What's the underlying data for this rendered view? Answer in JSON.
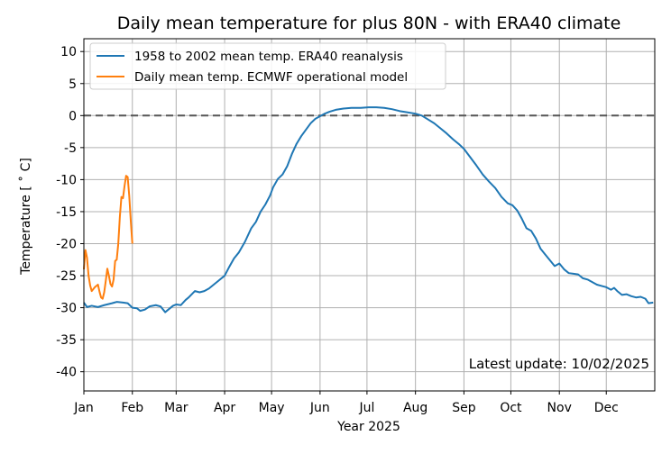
{
  "chart_data": {
    "type": "line",
    "title": "Daily mean temperature for plus 80N - with ERA40 climate",
    "xlabel": "Year 2025",
    "ylabel": "Temperature [$^\\circ$C]",
    "ylabel_display": "Temperature [ ˚ C]",
    "xlim_day_of_year": [
      1,
      366
    ],
    "ylim": [
      -43,
      12
    ],
    "x_ticks": [
      {
        "label": "Jan",
        "day": 1
      },
      {
        "label": "Feb",
        "day": 32
      },
      {
        "label": "Mar",
        "day": 60
      },
      {
        "label": "Apr",
        "day": 91
      },
      {
        "label": "May",
        "day": 121
      },
      {
        "label": "Jun",
        "day": 152
      },
      {
        "label": "Jul",
        "day": 182
      },
      {
        "label": "Aug",
        "day": 213
      },
      {
        "label": "Sep",
        "day": 244
      },
      {
        "label": "Oct",
        "day": 274
      },
      {
        "label": "Nov",
        "day": 305
      },
      {
        "label": "Dec",
        "day": 335
      }
    ],
    "y_ticks": [
      10,
      5,
      0,
      -5,
      -10,
      -15,
      -20,
      -25,
      -30,
      -35,
      -40
    ],
    "grid": true,
    "reference_line": {
      "y": 0,
      "style": "dashed",
      "color": "#555555"
    },
    "legend_position": "top-left",
    "annotation": "Latest update: 10/02/2025",
    "series": [
      {
        "name": "1958 to 2002 mean temp. ERA40 reanalysis",
        "color": "#1f77b4",
        "points": [
          [
            1,
            -29.2
          ],
          [
            3,
            -29.9
          ],
          [
            6,
            -29.7
          ],
          [
            10,
            -29.9
          ],
          [
            14,
            -29.6
          ],
          [
            19,
            -29.3
          ],
          [
            22,
            -29.1
          ],
          [
            26,
            -29.2
          ],
          [
            29,
            -29.3
          ],
          [
            32,
            -30.0
          ],
          [
            35,
            -30.1
          ],
          [
            37,
            -30.5
          ],
          [
            40,
            -30.3
          ],
          [
            43,
            -29.8
          ],
          [
            47,
            -29.6
          ],
          [
            50,
            -29.8
          ],
          [
            53,
            -30.7
          ],
          [
            55,
            -30.3
          ],
          [
            58,
            -29.7
          ],
          [
            60,
            -29.5
          ],
          [
            63,
            -29.6
          ],
          [
            66,
            -28.8
          ],
          [
            68,
            -28.4
          ],
          [
            72,
            -27.4
          ],
          [
            75,
            -27.6
          ],
          [
            78,
            -27.4
          ],
          [
            81,
            -27.0
          ],
          [
            84,
            -26.4
          ],
          [
            87,
            -25.8
          ],
          [
            91,
            -25.0
          ],
          [
            94,
            -23.6
          ],
          [
            97,
            -22.3
          ],
          [
            100,
            -21.4
          ],
          [
            104,
            -19.7
          ],
          [
            108,
            -17.6
          ],
          [
            111,
            -16.6
          ],
          [
            114,
            -15.0
          ],
          [
            117,
            -13.9
          ],
          [
            120,
            -12.5
          ],
          [
            122,
            -11.2
          ],
          [
            125,
            -9.9
          ],
          [
            128,
            -9.2
          ],
          [
            131,
            -7.9
          ],
          [
            134,
            -6.0
          ],
          [
            137,
            -4.4
          ],
          [
            140,
            -3.2
          ],
          [
            143,
            -2.2
          ],
          [
            146,
            -1.2
          ],
          [
            149,
            -0.5
          ],
          [
            152,
            -0.1
          ],
          [
            155,
            0.3
          ],
          [
            158,
            0.6
          ],
          [
            162,
            0.9
          ],
          [
            167,
            1.1
          ],
          [
            172,
            1.2
          ],
          [
            178,
            1.2
          ],
          [
            183,
            1.3
          ],
          [
            188,
            1.3
          ],
          [
            193,
            1.2
          ],
          [
            198,
            1.0
          ],
          [
            203,
            0.7
          ],
          [
            208,
            0.5
          ],
          [
            213,
            0.3
          ],
          [
            217,
            0.0
          ],
          [
            221,
            -0.6
          ],
          [
            225,
            -1.2
          ],
          [
            229,
            -2.0
          ],
          [
            233,
            -2.8
          ],
          [
            237,
            -3.7
          ],
          [
            241,
            -4.5
          ],
          [
            244,
            -5.2
          ],
          [
            248,
            -6.5
          ],
          [
            252,
            -7.8
          ],
          [
            256,
            -9.2
          ],
          [
            260,
            -10.3
          ],
          [
            264,
            -11.3
          ],
          [
            268,
            -12.7
          ],
          [
            272,
            -13.7
          ],
          [
            275,
            -14.0
          ],
          [
            278,
            -14.8
          ],
          [
            281,
            -16.1
          ],
          [
            284,
            -17.6
          ],
          [
            287,
            -18.0
          ],
          [
            290,
            -19.2
          ],
          [
            293,
            -20.8
          ],
          [
            296,
            -21.7
          ],
          [
            299,
            -22.6
          ],
          [
            302,
            -23.5
          ],
          [
            305,
            -23.1
          ],
          [
            308,
            -24.0
          ],
          [
            311,
            -24.6
          ],
          [
            314,
            -24.7
          ],
          [
            317,
            -24.8
          ],
          [
            320,
            -25.4
          ],
          [
            323,
            -25.6
          ],
          [
            326,
            -26.0
          ],
          [
            329,
            -26.4
          ],
          [
            332,
            -26.6
          ],
          [
            335,
            -26.8
          ],
          [
            338,
            -27.2
          ],
          [
            340,
            -26.9
          ],
          [
            342,
            -27.4
          ],
          [
            345,
            -28.0
          ],
          [
            348,
            -27.9
          ],
          [
            351,
            -28.2
          ],
          [
            354,
            -28.4
          ],
          [
            357,
            -28.3
          ],
          [
            360,
            -28.6
          ],
          [
            362,
            -29.3
          ],
          [
            365,
            -29.2
          ]
        ]
      },
      {
        "name": "Daily mean temp. ECMWF operational model",
        "color": "#ff7f0e",
        "points": [
          [
            1,
            -24.0
          ],
          [
            2,
            -21.0
          ],
          [
            3,
            -22.2
          ],
          [
            4,
            -25.0
          ],
          [
            5,
            -26.5
          ],
          [
            6,
            -27.4
          ],
          [
            7,
            -27.1
          ],
          [
            8,
            -26.8
          ],
          [
            9,
            -26.6
          ],
          [
            10,
            -26.4
          ],
          [
            11,
            -27.5
          ],
          [
            12,
            -28.4
          ],
          [
            13,
            -28.6
          ],
          [
            14,
            -27.6
          ],
          [
            15,
            -25.8
          ],
          [
            16,
            -23.9
          ],
          [
            17,
            -25.0
          ],
          [
            18,
            -26.3
          ],
          [
            19,
            -26.7
          ],
          [
            20,
            -25.6
          ],
          [
            21,
            -22.7
          ],
          [
            22,
            -22.5
          ],
          [
            23,
            -20.0
          ],
          [
            24,
            -15.8
          ],
          [
            25,
            -12.7
          ],
          [
            26,
            -12.9
          ],
          [
            27,
            -11.0
          ],
          [
            28,
            -9.4
          ],
          [
            29,
            -9.6
          ],
          [
            30,
            -12.5
          ],
          [
            31,
            -16.5
          ],
          [
            32,
            -20.0
          ]
        ]
      }
    ]
  }
}
